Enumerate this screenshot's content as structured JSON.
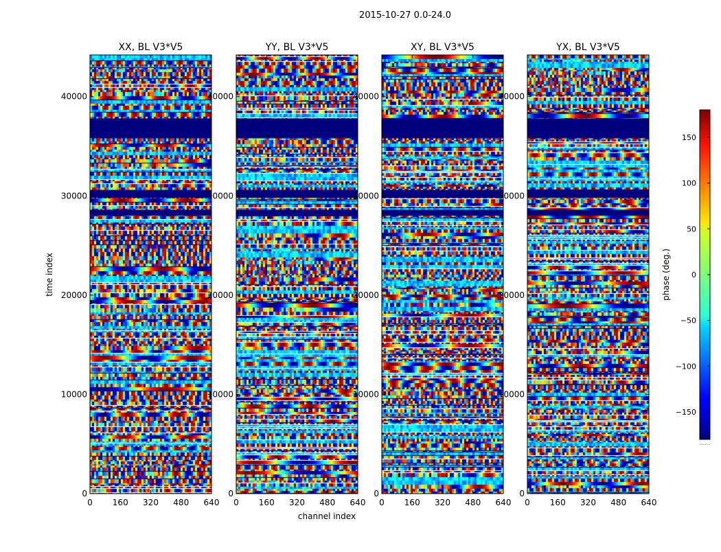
{
  "chart_data": {
    "type": "heatmap",
    "title": "2015-10-27 0.0-24.0",
    "xlabel": "channel index",
    "ylabel": "time index",
    "x_range": [
      0,
      640
    ],
    "y_range": [
      0,
      44200
    ],
    "x_ticks": [
      0,
      160,
      320,
      480,
      640
    ],
    "y_ticks": [
      0,
      10000,
      20000,
      30000,
      40000
    ],
    "panels": [
      {
        "title": "XX, BL V3*V5"
      },
      {
        "title": "YY, BL V3*V5"
      },
      {
        "title": "XY, BL V3*V5"
      },
      {
        "title": "YX, BL V3*V5"
      }
    ],
    "masked_time_bands": [
      [
        35800,
        37800
      ],
      [
        28000,
        28600
      ],
      [
        29800,
        30600
      ]
    ],
    "colorbar": {
      "label": "phase (deg.)",
      "vmin": -180,
      "vmax": 180,
      "ticks": [
        150,
        100,
        50,
        0,
        -50,
        -100,
        -150
      ],
      "tick_labels": [
        "150",
        "100",
        "50",
        "0",
        "−50",
        "−100",
        "−150"
      ],
      "colormap": "jet"
    }
  }
}
